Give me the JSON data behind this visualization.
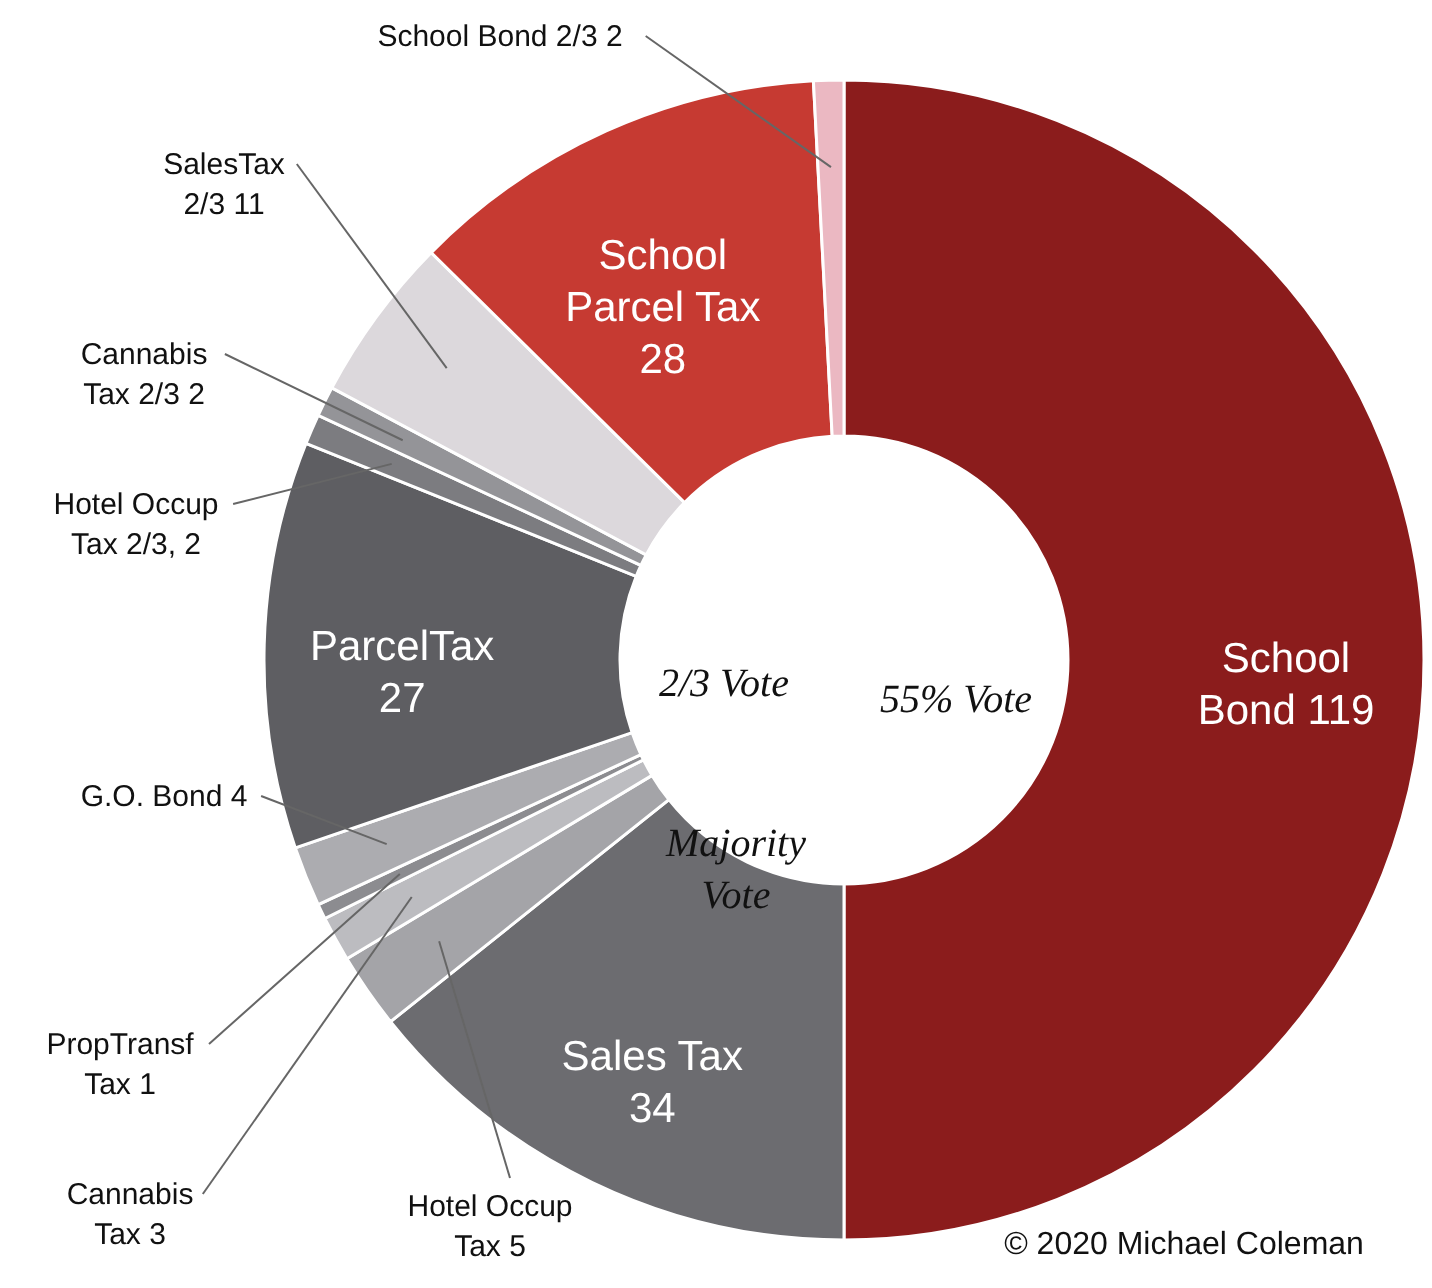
{
  "chart_data": {
    "type": "donut",
    "categories": [
      "School Bond 119",
      "Sales Tax 34",
      "Hotel Occup Tax 5",
      "Cannabis Tax 3",
      "PropTransf Tax 1",
      "G.O. Bond 4",
      "ParcelTax 27",
      "Hotel Occup Tax 2/3, 2",
      "Cannabis Tax 2/3 2",
      "SalesTax 2/3 11",
      "School Parcel Tax 28",
      "School Bond 2/3 2"
    ],
    "values": [
      119,
      34,
      5,
      3,
      1,
      4,
      27,
      2,
      2,
      11,
      28,
      2
    ],
    "colors": [
      "#8b1c1c",
      "#6c6c70",
      "#a4a4a8",
      "#bcbcc0",
      "#8c8c90",
      "#acacb0",
      "#5e5e62",
      "#7c7c80",
      "#949498",
      "#dcd8dc",
      "#c63a32",
      "#ebb8c2"
    ],
    "annotations": [
      "2/3 Vote",
      "55% Vote",
      "Majority Vote",
      "© 2020 Michael Coleman"
    ]
  }
}
